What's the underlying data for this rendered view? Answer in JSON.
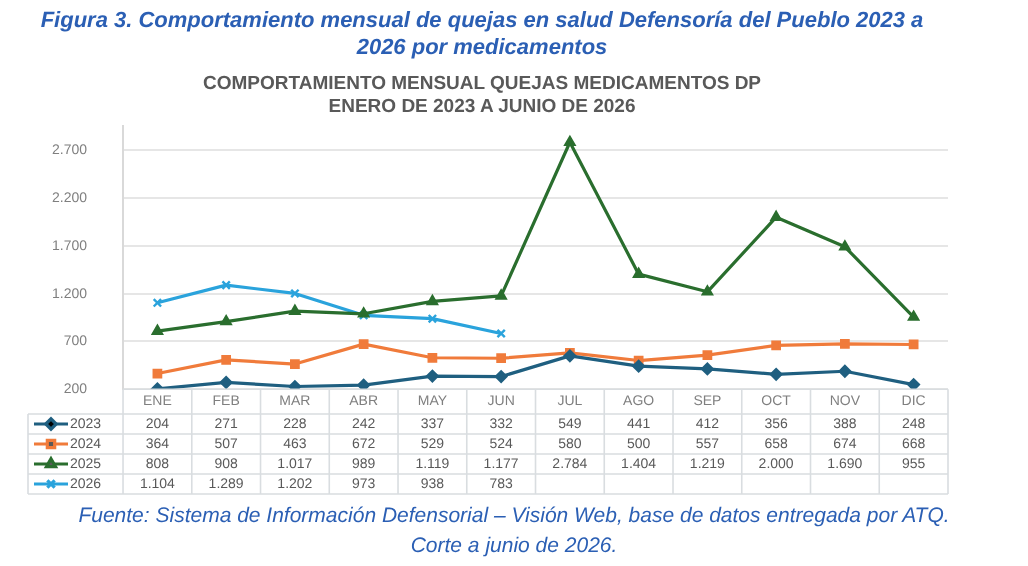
{
  "chart_data": {
    "type": "line",
    "title": "Figura 3. Comportamiento mensual de quejas en salud Defensoría del Pueblo 2023 a 2026 por medicamentos",
    "subtitle": "COMPORTAMIENTO MENSUAL QUEJAS MEDICAMENTOS DP\nENERO DE 2023 A JUNIO DE 2026",
    "categories": [
      "ENE",
      "FEB",
      "MAR",
      "ABR",
      "MAY",
      "JUN",
      "JUL",
      "AGO",
      "SEP",
      "OCT",
      "NOV",
      "DIC"
    ],
    "series": [
      {
        "name": "2023",
        "color": "#1f5f80",
        "marker": "diamond",
        "values": [
          204,
          271,
          228,
          242,
          337,
          332,
          549,
          441,
          412,
          356,
          388,
          248
        ],
        "value_labels": [
          "204",
          "271",
          "228",
          "242",
          "337",
          "332",
          "549",
          "441",
          "412",
          "356",
          "388",
          "248"
        ]
      },
      {
        "name": "2024",
        "color": "#f07b3b",
        "marker": "square",
        "values": [
          364,
          507,
          463,
          672,
          529,
          524,
          580,
          500,
          557,
          658,
          674,
          668
        ],
        "value_labels": [
          "364",
          "507",
          "463",
          "672",
          "529",
          "524",
          "580",
          "500",
          "557",
          "658",
          "674",
          "668"
        ]
      },
      {
        "name": "2025",
        "color": "#2a6e2e",
        "marker": "triangle",
        "values": [
          808,
          908,
          1017,
          989,
          1119,
          1177,
          2784,
          1404,
          1219,
          2000,
          1690,
          955
        ],
        "value_labels": [
          "808",
          "908",
          "1.017",
          "989",
          "1.119",
          "1.177",
          "2.784",
          "1.404",
          "1.219",
          "2.000",
          "1.690",
          "955"
        ]
      },
      {
        "name": "2026",
        "color": "#2aa3dc",
        "marker": "cross",
        "values": [
          1104,
          1289,
          1202,
          973,
          938,
          783,
          null,
          null,
          null,
          null,
          null,
          null
        ],
        "value_labels": [
          "1.104",
          "1.289",
          "1.202",
          "973",
          "938",
          "783",
          null,
          null,
          null,
          null,
          null,
          null
        ]
      }
    ],
    "ylim": [
      200,
      2950
    ],
    "yticks": [
      {
        "value": 200,
        "label": "200"
      },
      {
        "value": 700,
        "label": "700"
      },
      {
        "value": 1200,
        "label": "1.200"
      },
      {
        "value": 1700,
        "label": "1.700"
      },
      {
        "value": 2200,
        "label": "2.200"
      },
      {
        "value": 2700,
        "label": "2.700"
      }
    ],
    "grid": "y",
    "legend": "bottom",
    "line_style": "solid",
    "annotations": [
      "Fuente: Sistema de Información Defensorial – Visión Web, base de datos entregada por ATQ. Corte a junio de 2026."
    ]
  }
}
